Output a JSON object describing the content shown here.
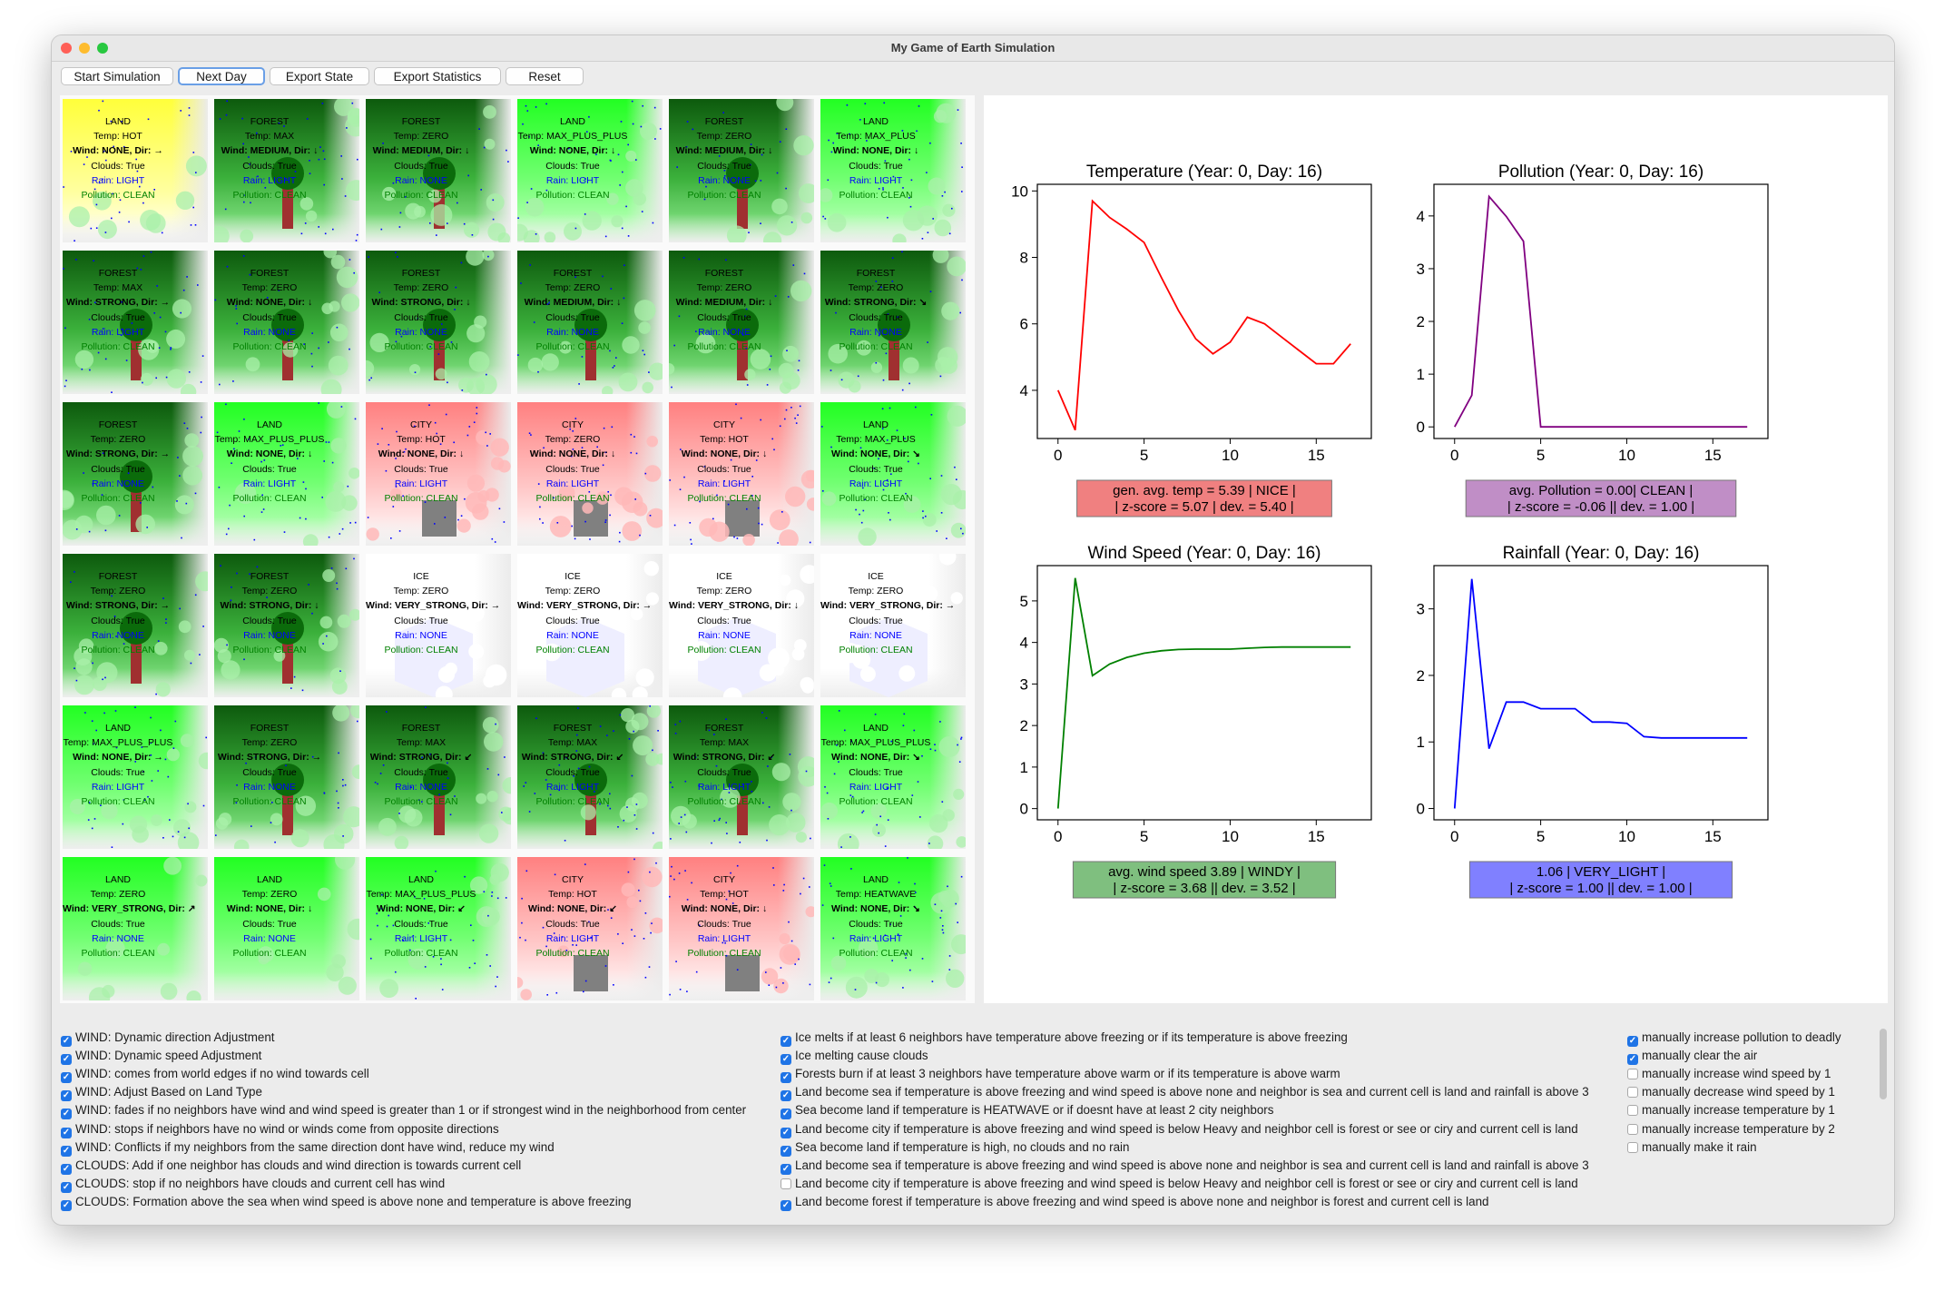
{
  "window": {
    "title": "My Game of Earth Simulation",
    "traffic_lights": [
      "#ff5f57",
      "#febc2e",
      "#28c840"
    ]
  },
  "toolbar": {
    "buttons": [
      {
        "label": "Start Simulation"
      },
      {
        "label": "Next Day"
      },
      {
        "label": "Export State"
      },
      {
        "label": "Export Statistics"
      },
      {
        "label": "Reset"
      }
    ]
  },
  "legend_colors": {
    "LAND": "#22ff22",
    "FOREST": "#116611",
    "CITY": "#ff8888",
    "ICE": "#ffffff",
    "HOT_LAND": "#ffff44",
    "tree_trunk": "#a03030",
    "tree_crown": "#0b6b0b",
    "building": "#808080",
    "rain_drops": "#0000ff",
    "ice_shape": "#eeeeff"
  },
  "cells": [
    {
      "type": "LAND",
      "temp": "Temp: HOT",
      "wind": "Wind: NONE, Dir: →",
      "clouds": "Clouds: True",
      "rain": "Rain: LIGHT",
      "pollution": "Pollution: CLEAN",
      "base": "#ffff44",
      "deco": "none"
    },
    {
      "type": "FOREST",
      "temp": "Temp: MAX",
      "wind": "Wind: MEDIUM, Dir: ↓",
      "clouds": "Clouds: True",
      "rain": "Rain: LIGHT",
      "pollution": "Pollution: CLEAN",
      "base": "#116611",
      "deco": "tree"
    },
    {
      "type": "FOREST",
      "temp": "Temp: ZERO",
      "wind": "Wind: MEDIUM, Dir: ↓",
      "clouds": "Clouds: True",
      "rain": "Rain: NONE",
      "pollution": "Pollution: CLEAN",
      "base": "#116611",
      "deco": "tree"
    },
    {
      "type": "LAND",
      "temp": "Temp: MAX_PLUS_PLUS",
      "wind": "Wind: NONE, Dir: ↓",
      "clouds": "Clouds: True",
      "rain": "Rain: LIGHT",
      "pollution": "Pollution: CLEAN",
      "base": "#22ff22",
      "deco": "none"
    },
    {
      "type": "FOREST",
      "temp": "Temp: ZERO",
      "wind": "Wind: MEDIUM, Dir: ↓",
      "clouds": "Clouds: True",
      "rain": "Rain: NONE",
      "pollution": "Pollution: CLEAN",
      "base": "#116611",
      "deco": "tree"
    },
    {
      "type": "LAND",
      "temp": "Temp: MAX_PLUS",
      "wind": "Wind: NONE, Dir: ↓",
      "clouds": "Clouds: True",
      "rain": "Rain: LIGHT",
      "pollution": "Pollution: CLEAN",
      "base": "#22ff22",
      "deco": "none"
    },
    {
      "type": "FOREST",
      "temp": "Temp: MAX",
      "wind": "Wind: STRONG, Dir: →",
      "clouds": "Clouds: True",
      "rain": "Rain: LIGHT",
      "pollution": "Pollution: CLEAN",
      "base": "#116611",
      "deco": "tree"
    },
    {
      "type": "FOREST",
      "temp": "Temp: ZERO",
      "wind": "Wind: NONE, Dir: ↓",
      "clouds": "Clouds: True",
      "rain": "Rain: NONE",
      "pollution": "Pollution: CLEAN",
      "base": "#116611",
      "deco": "tree"
    },
    {
      "type": "FOREST",
      "temp": "Temp: ZERO",
      "wind": "Wind: STRONG, Dir: ↓",
      "clouds": "Clouds: True",
      "rain": "Rain: NONE",
      "pollution": "Pollution: CLEAN",
      "base": "#116611",
      "deco": "tree"
    },
    {
      "type": "FOREST",
      "temp": "Temp: ZERO",
      "wind": "Wind: MEDIUM, Dir: ↓",
      "clouds": "Clouds: True",
      "rain": "Rain: NONE",
      "pollution": "Pollution: CLEAN",
      "base": "#116611",
      "deco": "tree"
    },
    {
      "type": "FOREST",
      "temp": "Temp: ZERO",
      "wind": "Wind: MEDIUM, Dir: ↓",
      "clouds": "Clouds: True",
      "rain": "Rain: NONE",
      "pollution": "Pollution: CLEAN",
      "base": "#116611",
      "deco": "tree"
    },
    {
      "type": "FOREST",
      "temp": "Temp: ZERO",
      "wind": "Wind: STRONG, Dir: ↘",
      "clouds": "Clouds: True",
      "rain": "Rain: NONE",
      "pollution": "Pollution: CLEAN",
      "base": "#116611",
      "deco": "tree"
    },
    {
      "type": "FOREST",
      "temp": "Temp: ZERO",
      "wind": "Wind: STRONG, Dir: →",
      "clouds": "Clouds: True",
      "rain": "Rain: NONE",
      "pollution": "Pollution: CLEAN",
      "base": "#116611",
      "deco": "tree"
    },
    {
      "type": "LAND",
      "temp": "Temp: MAX_PLUS_PLUS",
      "wind": "Wind: NONE, Dir: ↓",
      "clouds": "Clouds: True",
      "rain": "Rain: LIGHT",
      "pollution": "Pollution: CLEAN",
      "base": "#22ff22",
      "deco": "none"
    },
    {
      "type": "CITY",
      "temp": "Temp: HOT",
      "wind": "Wind: NONE, Dir: ↓",
      "clouds": "Clouds: True",
      "rain": "Rain: LIGHT",
      "pollution": "Pollution: CLEAN",
      "base": "#ff8888",
      "deco": "building"
    },
    {
      "type": "CITY",
      "temp": "Temp: ZERO",
      "wind": "Wind: NONE, Dir: ↓",
      "clouds": "Clouds: True",
      "rain": "Rain: LIGHT",
      "pollution": "Pollution: CLEAN",
      "base": "#ff8888",
      "deco": "building"
    },
    {
      "type": "CITY",
      "temp": "Temp: HOT",
      "wind": "Wind: NONE, Dir: ↓",
      "clouds": "Clouds: True",
      "rain": "Rain: LIGHT",
      "pollution": "Pollution: CLEAN",
      "base": "#ff8888",
      "deco": "building"
    },
    {
      "type": "LAND",
      "temp": "Temp: MAX_PLUS",
      "wind": "Wind: NONE, Dir: ↘",
      "clouds": "Clouds: True",
      "rain": "Rain: LIGHT",
      "pollution": "Pollution: CLEAN",
      "base": "#22ff22",
      "deco": "none"
    },
    {
      "type": "FOREST",
      "temp": "Temp: ZERO",
      "wind": "Wind: STRONG, Dir: →",
      "clouds": "Clouds: True",
      "rain": "Rain: NONE",
      "pollution": "Pollution: CLEAN",
      "base": "#116611",
      "deco": "tree"
    },
    {
      "type": "FOREST",
      "temp": "Temp: ZERO",
      "wind": "Wind: STRONG, Dir: ↓",
      "clouds": "Clouds: True",
      "rain": "Rain: NONE",
      "pollution": "Pollution: CLEAN",
      "base": "#116611",
      "deco": "tree"
    },
    {
      "type": "ICE",
      "temp": "Temp: ZERO",
      "wind": "Wind: VERY_STRONG, Dir: →",
      "clouds": "Clouds: True",
      "rain": "Rain: NONE",
      "pollution": "Pollution: CLEAN",
      "base": "#ffffff",
      "deco": "ice"
    },
    {
      "type": "ICE",
      "temp": "Temp: ZERO",
      "wind": "Wind: VERY_STRONG, Dir: →",
      "clouds": "Clouds: True",
      "rain": "Rain: NONE",
      "pollution": "Pollution: CLEAN",
      "base": "#ffffff",
      "deco": "ice"
    },
    {
      "type": "ICE",
      "temp": "Temp: ZERO",
      "wind": "Wind: VERY_STRONG, Dir: ↓",
      "clouds": "Clouds: True",
      "rain": "Rain: NONE",
      "pollution": "Pollution: CLEAN",
      "base": "#ffffff",
      "deco": "ice"
    },
    {
      "type": "ICE",
      "temp": "Temp: ZERO",
      "wind": "Wind: VERY_STRONG, Dir: →",
      "clouds": "Clouds: True",
      "rain": "Rain: NONE",
      "pollution": "Pollution: CLEAN",
      "base": "#ffffff",
      "deco": "ice"
    },
    {
      "type": "LAND",
      "temp": "Temp: MAX_PLUS_PLUS",
      "wind": "Wind: NONE, Dir: →",
      "clouds": "Clouds: True",
      "rain": "Rain: LIGHT",
      "pollution": "Pollution: CLEAN",
      "base": "#22ff22",
      "deco": "none"
    },
    {
      "type": "FOREST",
      "temp": "Temp: ZERO",
      "wind": "Wind: STRONG, Dir: →",
      "clouds": "Clouds: True",
      "rain": "Rain: NONE",
      "pollution": "Pollution: CLEAN",
      "base": "#116611",
      "deco": "tree"
    },
    {
      "type": "FOREST",
      "temp": "Temp: MAX",
      "wind": "Wind: STRONG, Dir: ↙",
      "clouds": "Clouds: True",
      "rain": "Rain: NONE",
      "pollution": "Pollution: CLEAN",
      "base": "#116611",
      "deco": "tree"
    },
    {
      "type": "FOREST",
      "temp": "Temp: MAX",
      "wind": "Wind: STRONG, Dir: ↙",
      "clouds": "Clouds: True",
      "rain": "Rain: LIGHT",
      "pollution": "Pollution: CLEAN",
      "base": "#116611",
      "deco": "tree"
    },
    {
      "type": "FOREST",
      "temp": "Temp: MAX",
      "wind": "Wind: STRONG, Dir: ↙",
      "clouds": "Clouds: True",
      "rain": "Rain: LIGHT",
      "pollution": "Pollution: CLEAN",
      "base": "#116611",
      "deco": "tree"
    },
    {
      "type": "LAND",
      "temp": "Temp: MAX_PLUS_PLUS",
      "wind": "Wind: NONE, Dir: ↘",
      "clouds": "Clouds: True",
      "rain": "Rain: LIGHT",
      "pollution": "Pollution: CLEAN",
      "base": "#22ff22",
      "deco": "none"
    },
    {
      "type": "LAND",
      "temp": "Temp: ZERO",
      "wind": "Wind: VERY_STRONG, Dir: ↗",
      "clouds": "Clouds: True",
      "rain": "Rain: NONE",
      "pollution": "Pollution: CLEAN",
      "base": "#22ff22",
      "deco": "none"
    },
    {
      "type": "LAND",
      "temp": "Temp: ZERO",
      "wind": "Wind: NONE, Dir: ↓",
      "clouds": "Clouds: True",
      "rain": "Rain: NONE",
      "pollution": "Pollution: CLEAN",
      "base": "#22ff22",
      "deco": "none"
    },
    {
      "type": "LAND",
      "temp": "Temp: MAX_PLUS_PLUS",
      "wind": "Wind: NONE, Dir: ↙",
      "clouds": "Clouds: True",
      "rain": "Rain: LIGHT",
      "pollution": "Pollution: CLEAN",
      "base": "#22ff22",
      "deco": "none"
    },
    {
      "type": "CITY",
      "temp": "Temp: HOT",
      "wind": "Wind: NONE, Dir: ↙",
      "clouds": "Clouds: True",
      "rain": "Rain: LIGHT",
      "pollution": "Pollution: CLEAN",
      "base": "#ff8888",
      "deco": "building"
    },
    {
      "type": "CITY",
      "temp": "Temp: HOT",
      "wind": "Wind: NONE, Dir: ↓",
      "clouds": "Clouds: True",
      "rain": "Rain: LIGHT",
      "pollution": "Pollution: CLEAN",
      "base": "#ff8888",
      "deco": "building"
    },
    {
      "type": "LAND",
      "temp": "Temp: HEATWAVE",
      "wind": "Wind: NONE, Dir: ↘",
      "clouds": "Clouds: True",
      "rain": "Rain: LIGHT",
      "pollution": "Pollution: CLEAN",
      "base": "#22ff22",
      "deco": "none"
    }
  ],
  "chart_data": [
    {
      "type": "line",
      "title": "Temperature (Year: 0, Day: 16)",
      "x": [
        0,
        1,
        2,
        3,
        4,
        5,
        6,
        7,
        8,
        9,
        10,
        11,
        12,
        13,
        14,
        15,
        16,
        17
      ],
      "values": [
        4.0,
        2.8,
        9.7,
        9.2,
        8.85,
        8.45,
        7.4,
        6.4,
        5.55,
        5.1,
        5.45,
        6.2,
        6.0,
        5.6,
        5.2,
        4.8,
        4.8,
        5.4
      ],
      "xticks": [
        0,
        5,
        10,
        15
      ],
      "yticks": [
        4,
        6,
        8,
        10
      ],
      "xlim": [
        -1.2,
        18.2
      ],
      "ylim": [
        2.55,
        10.2
      ],
      "color": "#ff0000",
      "stat_lines": [
        "gen. avg. temp = 5.39 | NICE |",
        "| z-score = 5.07 | dev. = 5.40 |"
      ],
      "stat_bg": "#f08080"
    },
    {
      "type": "line",
      "title": "Pollution (Year: 0, Day: 16)",
      "x": [
        0,
        1,
        2,
        3,
        4,
        5,
        6,
        7,
        8,
        9,
        10,
        11,
        12,
        13,
        14,
        15,
        16,
        17
      ],
      "values": [
        0.0,
        0.6,
        4.37,
        3.99,
        3.52,
        0.0,
        0.0,
        0.0,
        0.0,
        0.0,
        0.0,
        0.0,
        0.0,
        0.0,
        0.0,
        0.0,
        0.0,
        0.0
      ],
      "xticks": [
        0,
        5,
        10,
        15
      ],
      "yticks": [
        0,
        1,
        2,
        3,
        4
      ],
      "xlim": [
        -1.2,
        18.2
      ],
      "ylim": [
        -0.22,
        4.6
      ],
      "color": "#800080",
      "stat_lines": [
        "avg. Pollution = 0.00| CLEAN |",
        "| z-score = -0.06 || dev. = 1.00 |"
      ],
      "stat_bg": "#c08ec6"
    },
    {
      "type": "line",
      "title": "Wind Speed (Year: 0, Day: 16)",
      "x": [
        0,
        1,
        2,
        3,
        4,
        5,
        6,
        7,
        8,
        9,
        10,
        11,
        12,
        13,
        14,
        15,
        16,
        17
      ],
      "values": [
        0.0,
        5.55,
        3.2,
        3.48,
        3.64,
        3.74,
        3.8,
        3.83,
        3.84,
        3.84,
        3.84,
        3.86,
        3.88,
        3.89,
        3.89,
        3.89,
        3.89,
        3.89
      ],
      "xticks": [
        0,
        5,
        10,
        15
      ],
      "yticks": [
        0,
        1,
        2,
        3,
        4,
        5
      ],
      "xlim": [
        -1.2,
        18.2
      ],
      "ylim": [
        -0.27,
        5.85
      ],
      "color": "#008000",
      "stat_lines": [
        "avg. wind speed 3.89 | WINDY |",
        "| z-score = 3.68 || dev. = 3.52 |"
      ],
      "stat_bg": "#7fbf7f"
    },
    {
      "type": "line",
      "title": "Rainfall (Year: 0, Day: 16)",
      "x": [
        0,
        1,
        2,
        3,
        4,
        5,
        6,
        7,
        8,
        9,
        10,
        11,
        12,
        13,
        14,
        15,
        16,
        17
      ],
      "values": [
        0.0,
        3.45,
        0.9,
        1.6,
        1.6,
        1.5,
        1.5,
        1.5,
        1.3,
        1.3,
        1.28,
        1.08,
        1.06,
        1.06,
        1.06,
        1.06,
        1.06,
        1.06
      ],
      "xticks": [
        0,
        5,
        10,
        15
      ],
      "yticks": [
        0,
        1,
        2,
        3
      ],
      "xlim": [
        -1.2,
        18.2
      ],
      "ylim": [
        -0.17,
        3.65
      ],
      "color": "#0000ff",
      "stat_lines": [
        "1.06 | VERY_LIGHT |",
        "| z-score = 1.00 || dev. = 1.00 |"
      ],
      "stat_bg": "#8080ff"
    }
  ],
  "rules": [
    {
      "checked": true,
      "label": "WIND: Dynamic direction Adjustment"
    },
    {
      "checked": true,
      "label": "WIND: Dynamic speed Adjustment"
    },
    {
      "checked": true,
      "label": "WIND: comes from world edges if no wind towards cell"
    },
    {
      "checked": true,
      "label": "WIND: Adjust Based on Land Type"
    },
    {
      "checked": true,
      "label": "WIND: fades if no neighbors have wind and wind speed is greater than 1 or if strongest wind in the neighborhood from center"
    },
    {
      "checked": true,
      "label": "WIND: stops if neighbors have no wind or winds come from opposite directions"
    },
    {
      "checked": true,
      "label": "WIND: Conflicts if my neighbors from the same direction dont have wind, reduce my wind"
    },
    {
      "checked": true,
      "label": "CLOUDS: Add if one neighbor has clouds and wind direction is towards current cell"
    },
    {
      "checked": true,
      "label": "CLOUDS: stop if no neighbors have clouds and current cell has wind"
    },
    {
      "checked": true,
      "label": "CLOUDS: Formation above the sea when wind speed is above none and temperature is above freezing"
    },
    {
      "checked": true,
      "label": "Ice melts if at least 6 neighbors have temperature above freezing or if its temperature is above freezing"
    },
    {
      "checked": true,
      "label": "Ice melting cause clouds"
    },
    {
      "checked": true,
      "label": "Forests burn if at least 3 neighbors have temperature above warm or if its temperature is above warm"
    },
    {
      "checked": true,
      "label": "Land become sea if temperature is above freezing and wind speed is above none and neighbor is sea and current cell is land and rainfall is above 3"
    },
    {
      "checked": true,
      "label": "Sea become land if temperature is HEATWAVE or if doesnt have at least 2 city neighbors"
    },
    {
      "checked": true,
      "label": "Land become city if temperature is above freezing and wind speed is below Heavy and neighbor cell is forest or see or ciry and current cell is land"
    },
    {
      "checked": true,
      "label": "Sea become land if temperature is high, no clouds and no rain"
    },
    {
      "checked": true,
      "label": "Land become sea if temperature is above freezing and wind speed is above none and neighbor is sea and current cell is land and rainfall is above 3"
    },
    {
      "checked": false,
      "label": "Land become city if temperature is above freezing and wind speed is below Heavy and neighbor cell is forest or see or ciry and current cell is land"
    },
    {
      "checked": true,
      "label": "Land become forest if temperature is above freezing and wind speed is above none and neighbor is forest and current cell is land"
    },
    {
      "checked": true,
      "label": "manually increase pollution to deadly"
    },
    {
      "checked": true,
      "label": "manually clear the air"
    },
    {
      "checked": false,
      "label": "manually increase wind speed by 1"
    },
    {
      "checked": false,
      "label": "manually decrease wind speed by 1"
    },
    {
      "checked": false,
      "label": "manually increase temperature by 1"
    },
    {
      "checked": false,
      "label": "manually increase temperature by 2"
    },
    {
      "checked": false,
      "label": "manually make it rain"
    }
  ]
}
